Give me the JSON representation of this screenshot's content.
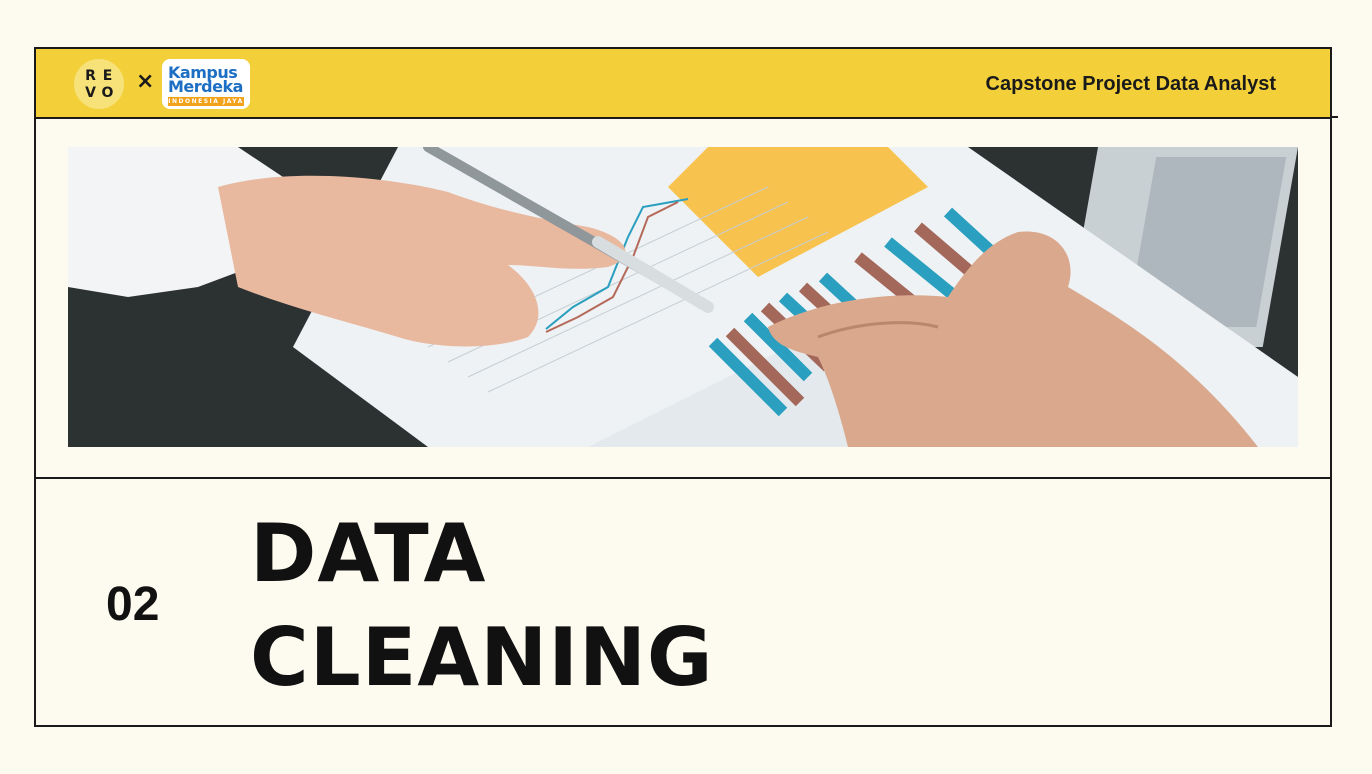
{
  "header": {
    "revo_logo": {
      "letters": [
        "R",
        "E",
        "V",
        "O"
      ]
    },
    "separator": "×",
    "kampus_merdeka_logo": {
      "line1": "Kampus",
      "line2": "Merdeka",
      "tagline": "INDONESIA JAYA"
    },
    "title": "Capstone Project Data Analyst"
  },
  "hero": {
    "icon": "business-analytics-photo"
  },
  "section": {
    "number": "02",
    "title_line1": "DATA",
    "title_line2": "CLEANING"
  },
  "colors": {
    "background": "#fdfbef",
    "header": "#f3d03a",
    "border": "#1a1a1a",
    "text": "#111111"
  }
}
